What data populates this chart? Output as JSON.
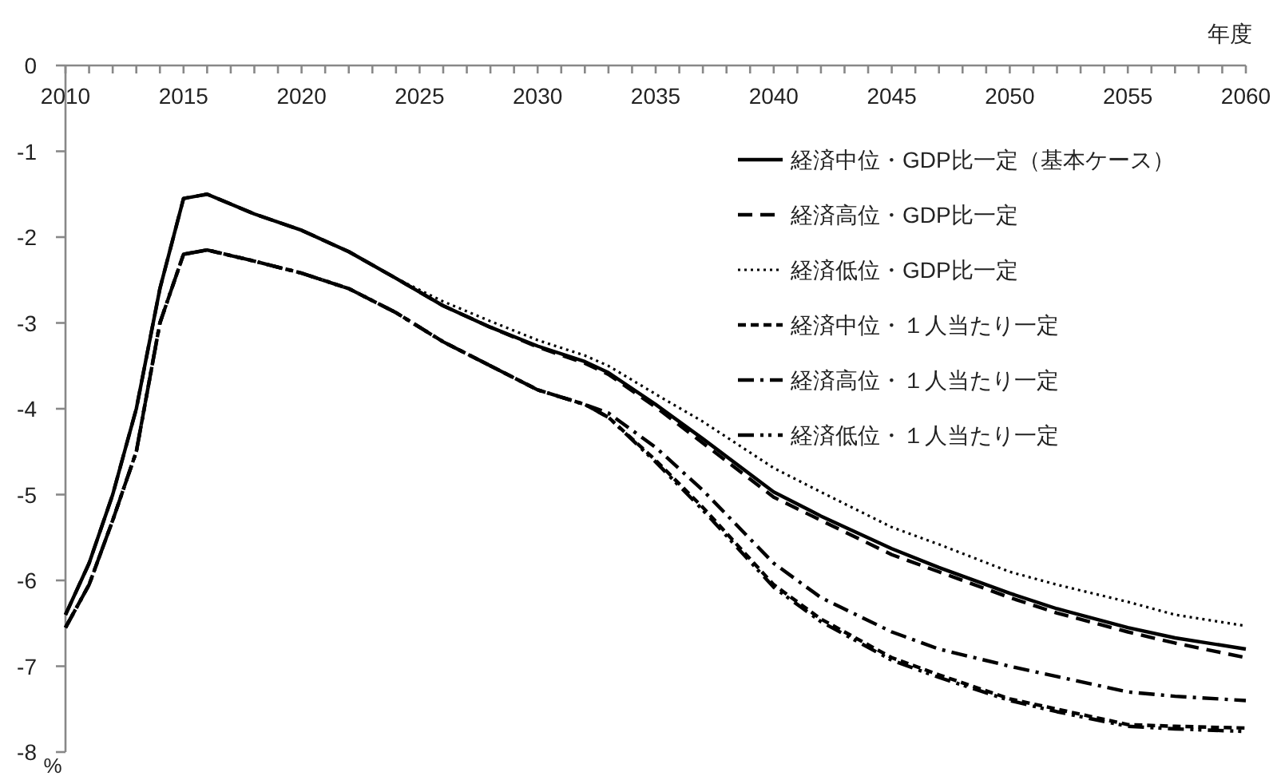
{
  "chart_data": {
    "type": "line",
    "xlabel": "年度",
    "ylabel": "%",
    "x": [
      2010,
      2011,
      2012,
      2013,
      2014,
      2015,
      2016,
      2018,
      2020,
      2022,
      2024,
      2026,
      2028,
      2030,
      2032,
      2033,
      2035,
      2037,
      2040,
      2042,
      2045,
      2047,
      2050,
      2052,
      2055,
      2057,
      2060
    ],
    "xlim": [
      2010,
      2060
    ],
    "xticks": [
      2010,
      2015,
      2020,
      2025,
      2030,
      2035,
      2040,
      2045,
      2050,
      2055,
      2060
    ],
    "ylim": [
      -8,
      0
    ],
    "yticks": [
      -8,
      -7,
      -6,
      -5,
      -4,
      -3,
      -2,
      -1,
      0
    ],
    "grid": false,
    "legend": "top right",
    "marker": "none",
    "series": [
      {
        "name": "経済中位・GDP比一定（基本ケース）",
        "color": "#000000",
        "line_style": "solid",
        "values": [
          -6.4,
          -5.8,
          -5.0,
          -4.0,
          -2.6,
          -1.55,
          -1.5,
          -1.73,
          -1.92,
          -2.17,
          -2.48,
          -2.8,
          -3.05,
          -3.27,
          -3.45,
          -3.58,
          -3.95,
          -4.35,
          -4.97,
          -5.25,
          -5.63,
          -5.85,
          -6.15,
          -6.33,
          -6.55,
          -6.67,
          -6.8
        ]
      },
      {
        "name": "経済高位・GDP比一定",
        "color": "#000000",
        "line_style": "dashed",
        "values": [
          -6.4,
          -5.8,
          -5.0,
          -4.0,
          -2.6,
          -1.55,
          -1.5,
          -1.73,
          -1.92,
          -2.17,
          -2.48,
          -2.8,
          -3.05,
          -3.28,
          -3.47,
          -3.6,
          -3.98,
          -4.4,
          -5.03,
          -5.3,
          -5.7,
          -5.9,
          -6.2,
          -6.38,
          -6.6,
          -6.73,
          -6.9
        ]
      },
      {
        "name": "経済低位・GDP比一定",
        "color": "#000000",
        "line_style": "dotted",
        "values": [
          -6.4,
          -5.8,
          -5.0,
          -4.0,
          -2.6,
          -1.55,
          -1.5,
          -1.73,
          -1.92,
          -2.17,
          -2.48,
          -2.75,
          -2.98,
          -3.2,
          -3.38,
          -3.5,
          -3.83,
          -4.15,
          -4.69,
          -4.97,
          -5.38,
          -5.58,
          -5.9,
          -6.05,
          -6.25,
          -6.4,
          -6.53
        ]
      },
      {
        "name": "経済中位・１人当たり一定",
        "color": "#000000",
        "line_style": "shortdash",
        "values": [
          -6.55,
          -6.05,
          -5.3,
          -4.5,
          -3.0,
          -2.2,
          -2.15,
          -2.28,
          -2.42,
          -2.6,
          -2.88,
          -3.22,
          -3.5,
          -3.78,
          -3.95,
          -4.1,
          -4.6,
          -5.15,
          -6.05,
          -6.45,
          -6.9,
          -7.1,
          -7.38,
          -7.5,
          -7.68,
          -7.7,
          -7.72
        ]
      },
      {
        "name": "経済高位・１人当たり一定",
        "color": "#000000",
        "line_style": "dashdot",
        "values": [
          -6.55,
          -6.05,
          -5.3,
          -4.5,
          -3.0,
          -2.2,
          -2.15,
          -2.28,
          -2.42,
          -2.6,
          -2.88,
          -3.22,
          -3.5,
          -3.78,
          -3.95,
          -4.05,
          -4.45,
          -4.95,
          -5.8,
          -6.2,
          -6.6,
          -6.8,
          -7.0,
          -7.12,
          -7.3,
          -7.35,
          -7.4
        ]
      },
      {
        "name": "経済低位・１人当たり一定",
        "color": "#000000",
        "line_style": "dashdotdot",
        "values": [
          -6.55,
          -6.05,
          -5.3,
          -4.5,
          -3.0,
          -2.2,
          -2.15,
          -2.28,
          -2.42,
          -2.6,
          -2.88,
          -3.22,
          -3.5,
          -3.78,
          -3.95,
          -4.1,
          -4.62,
          -5.18,
          -6.08,
          -6.48,
          -6.93,
          -7.13,
          -7.4,
          -7.53,
          -7.7,
          -7.73,
          -7.76
        ]
      }
    ]
  }
}
